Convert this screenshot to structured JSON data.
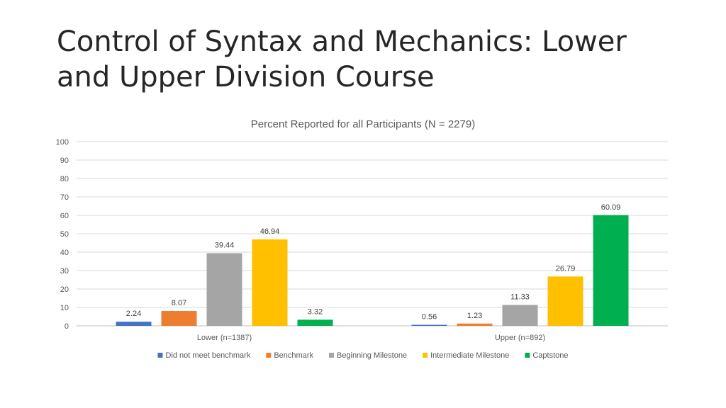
{
  "slide": {
    "title": "Control of Syntax and Mechanics: Lower and Upper Division Course"
  },
  "chart_data": {
    "type": "bar",
    "title": "Percent Reported for all Participants (N = 2279)",
    "xlabel": "",
    "ylabel": "",
    "ylim": [
      0,
      100
    ],
    "yticks": [
      0,
      10,
      20,
      30,
      40,
      50,
      60,
      70,
      80,
      90,
      100
    ],
    "grid": true,
    "legend_position": "bottom",
    "categories": [
      "Lower (n=1387)",
      "Upper (n=892)"
    ],
    "series": [
      {
        "name": "Did not meet benchmark",
        "color": "#4472C4",
        "values": [
          2.24,
          0.56
        ],
        "labels": [
          "2.24",
          "0.56"
        ]
      },
      {
        "name": "Benchmark",
        "color": "#ED7D31",
        "values": [
          8.07,
          1.23
        ],
        "labels": [
          "8.07",
          "1.23"
        ]
      },
      {
        "name": "Beginning Milestone",
        "color": "#A5A5A5",
        "values": [
          39.44,
          11.33
        ],
        "labels": [
          "39.44",
          "11.33"
        ]
      },
      {
        "name": "Intermediate Milestone",
        "color": "#FFC000",
        "values": [
          46.94,
          26.79
        ],
        "labels": [
          "46.94",
          "26.79"
        ]
      },
      {
        "name": "Captstone",
        "color": "#00B050",
        "values": [
          3.32,
          60.09
        ],
        "labels": [
          "3.32",
          "60.09"
        ]
      }
    ]
  }
}
